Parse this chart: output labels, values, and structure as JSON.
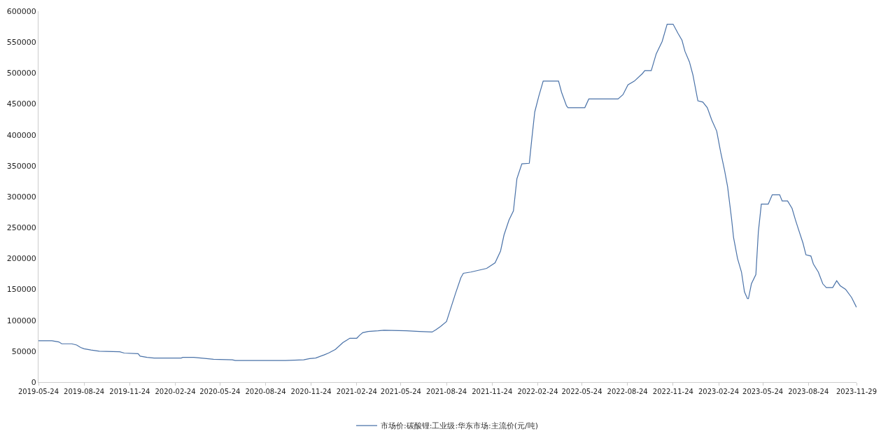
{
  "chart_data": {
    "type": "line",
    "legend": "bottom",
    "grid": false,
    "xlim": [
      "2019-05-24",
      "2023-11-29"
    ],
    "xticks": [
      "2019-05-24",
      "2019-08-24",
      "2019-11-24",
      "2020-02-24",
      "2020-05-24",
      "2020-08-24",
      "2020-11-24",
      "2021-02-24",
      "2021-05-24",
      "2021-08-24",
      "2021-11-24",
      "2022-02-24",
      "2022-05-24",
      "2022-08-24",
      "2022-11-24",
      "2023-02-24",
      "2023-05-24",
      "2023-08-24",
      "2023-11-29"
    ],
    "ylim": [
      0,
      600000
    ],
    "yticks": [
      0,
      50000,
      100000,
      150000,
      200000,
      250000,
      300000,
      350000,
      400000,
      450000,
      500000,
      550000,
      600000
    ],
    "series": [
      {
        "name": "市场价:碳酸锂:工业级:华东市场:主流价(元/吨)",
        "color": "#4a72a8",
        "x": [
          "2019-05-24",
          "2019-06-20",
          "2019-07-04",
          "2019-07-10",
          "2019-07-30",
          "2019-08-09",
          "2019-08-17",
          "2019-08-24",
          "2019-09-07",
          "2019-09-24",
          "2019-11-04",
          "2019-11-13",
          "2019-12-11",
          "2019-12-15",
          "2019-12-29",
          "2020-01-12",
          "2020-03-07",
          "2020-03-10",
          "2020-04-01",
          "2020-04-27",
          "2020-05-11",
          "2020-06-18",
          "2020-06-24",
          "2020-10-03",
          "2020-11-09",
          "2020-11-21",
          "2020-12-03",
          "2020-12-20",
          "2020-12-29",
          "2021-01-12",
          "2021-01-27",
          "2021-02-04",
          "2021-02-10",
          "2021-02-24",
          "2021-03-02",
          "2021-03-08",
          "2021-03-19",
          "2021-04-08",
          "2021-04-20",
          "2021-06-04",
          "2021-06-30",
          "2021-07-26",
          "2021-08-03",
          "2021-08-12",
          "2021-08-24",
          "2021-08-30",
          "2021-09-11",
          "2021-09-22",
          "2021-09-27",
          "2021-10-12",
          "2021-11-13",
          "2021-11-30",
          "2021-12-11",
          "2021-12-18",
          "2021-12-28",
          "2022-01-06",
          "2022-01-13",
          "2022-01-23",
          "2022-02-07",
          "2022-02-12",
          "2022-02-18",
          "2022-02-26",
          "2022-03-07",
          "2022-04-07",
          "2022-04-13",
          "2022-04-23",
          "2022-04-26",
          "2022-05-30",
          "2022-06-07",
          "2022-08-05",
          "2022-08-15",
          "2022-08-25",
          "2022-09-07",
          "2022-09-23",
          "2022-09-28",
          "2022-10-11",
          "2022-10-21",
          "2022-11-02",
          "2022-11-12",
          "2022-11-24",
          "2022-12-04",
          "2022-12-12",
          "2022-12-18",
          "2022-12-27",
          "2023-01-03",
          "2023-01-13",
          "2023-01-23",
          "2023-02-01",
          "2023-02-10",
          "2023-02-20",
          "2023-02-28",
          "2023-03-08",
          "2023-03-14",
          "2023-03-22",
          "2023-03-26",
          "2023-04-03",
          "2023-04-11",
          "2023-04-17",
          "2023-04-23",
          "2023-04-25",
          "2023-05-01",
          "2023-05-10",
          "2023-05-15",
          "2023-05-21",
          "2023-06-04",
          "2023-06-12",
          "2023-06-27",
          "2023-07-02",
          "2023-07-13",
          "2023-07-22",
          "2023-07-29",
          "2023-08-04",
          "2023-08-13",
          "2023-08-19",
          "2023-08-29",
          "2023-09-03",
          "2023-09-13",
          "2023-09-22",
          "2023-09-29",
          "2023-10-12",
          "2023-10-20",
          "2023-10-27",
          "2023-11-07",
          "2023-11-19",
          "2023-11-29"
        ],
        "values": [
          67000,
          67000,
          65000,
          62000,
          62000,
          60000,
          56000,
          54000,
          52000,
          50000,
          49000,
          47000,
          46000,
          42000,
          40000,
          39000,
          39000,
          40000,
          40000,
          38000,
          37000,
          36000,
          35000,
          35000,
          36000,
          38000,
          39000,
          44000,
          47000,
          53000,
          64000,
          68000,
          71000,
          71000,
          76000,
          80000,
          82000,
          83000,
          84000,
          83000,
          82000,
          81000,
          85000,
          90000,
          98000,
          113000,
          143000,
          169000,
          176000,
          178000,
          184000,
          193000,
          212000,
          238000,
          262000,
          277000,
          329000,
          353000,
          354000,
          393000,
          437000,
          462000,
          487000,
          487000,
          469000,
          447000,
          444000,
          444000,
          458000,
          458000,
          465000,
          481000,
          487000,
          499000,
          504000,
          504000,
          531000,
          551000,
          579000,
          579000,
          564000,
          553000,
          535000,
          518000,
          497000,
          455000,
          453000,
          444000,
          424000,
          406000,
          372000,
          342000,
          316000,
          264000,
          234000,
          200000,
          178000,
          146000,
          135000,
          135000,
          159000,
          174000,
          243000,
          288000,
          288000,
          303000,
          303000,
          293000,
          293000,
          281000,
          262000,
          247000,
          225000,
          206000,
          204000,
          191000,
          178000,
          159000,
          153000,
          153000,
          164000,
          156000,
          150000,
          137000,
          121000
        ]
      }
    ]
  }
}
